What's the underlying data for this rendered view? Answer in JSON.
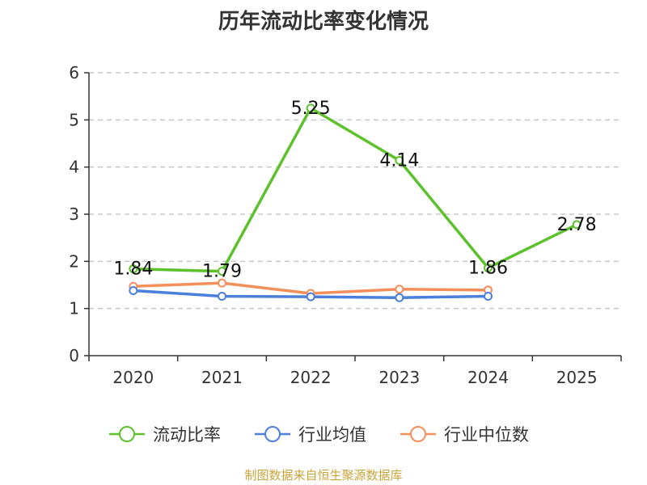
{
  "chart_data": {
    "type": "line",
    "title": "历年流动比率变化情况",
    "categories": [
      "2020",
      "2021",
      "2022",
      "2023",
      "2024",
      "2025"
    ],
    "y_ticks": [
      "0",
      "1",
      "2",
      "3",
      "4",
      "5",
      "6"
    ],
    "ylim": [
      0,
      6
    ],
    "grid": true,
    "legend_position": "bottom",
    "series": [
      {
        "name": "流动比率",
        "color": "#5cc12b",
        "values": [
          1.84,
          1.79,
          5.25,
          4.14,
          1.86,
          2.78
        ],
        "labels": [
          "1.84",
          "1.79",
          "5.25",
          "4.14",
          "1.86",
          "2.78"
        ]
      },
      {
        "name": "行业均值",
        "color": "#4a7fdc",
        "values": [
          1.38,
          1.26,
          1.25,
          1.23,
          1.26,
          null
        ]
      },
      {
        "name": "行业中位数",
        "color": "#f48f5a",
        "values": [
          1.47,
          1.54,
          1.32,
          1.41,
          1.39,
          null
        ]
      }
    ]
  },
  "footer": {
    "source": "制图数据来自恒生聚源数据库",
    "color": "#c9a43b"
  }
}
